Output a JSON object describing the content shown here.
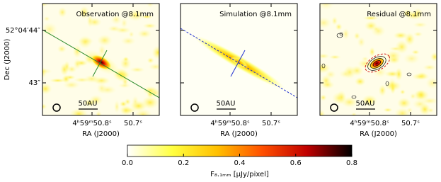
{
  "chart_data": {
    "type": "image",
    "panels": [
      {
        "title": "Observation @8.1mm",
        "scale_bar": "50AU",
        "xlabel": "RA (J2000)",
        "xtick_labels": [
          "4ʰ59ᵐ50.8ˢ",
          "50.7ˢ"
        ]
      },
      {
        "title": "Simulation @8.1mm",
        "scale_bar": "50AU",
        "xlabel": "RA (J2000)",
        "xtick_labels": [
          "4ʰ59ᵐ50.8ˢ",
          "50.7ˢ"
        ]
      },
      {
        "title": "Residual @8.1mm",
        "scale_bar": "50AU",
        "xlabel": "RA (J2000)",
        "xtick_labels": [
          "4ʰ59ᵐ50.8ˢ",
          "50.7ˢ"
        ]
      }
    ],
    "ylabel": "Dec (J2000)",
    "ytick_labels": [
      "52°04′44″",
      "43″"
    ],
    "colorbar": {
      "label": "F₈.₁ₘₘ [μJy/pixel]",
      "lim": [
        0,
        0.8
      ],
      "ticks": [
        {
          "value": 0,
          "label": "0.0"
        },
        0.2,
        0.4,
        0.6,
        0.8
      ]
    }
  }
}
